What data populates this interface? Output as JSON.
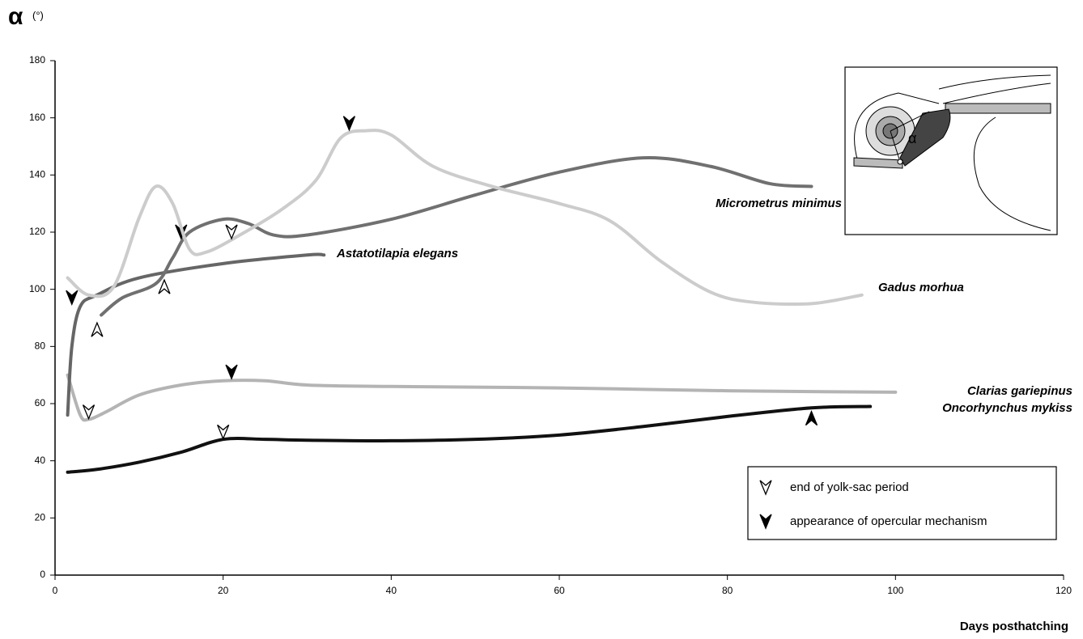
{
  "chart_data": {
    "type": "line",
    "y_label": "α",
    "y_unit": "(°)",
    "x_label": "Days posthatching",
    "xlim": [
      0,
      120
    ],
    "xticks": [
      0,
      20,
      40,
      60,
      80,
      100,
      120
    ],
    "ylim": [
      0,
      180
    ],
    "yticks": [
      0,
      20,
      40,
      60,
      80,
      100,
      120,
      140,
      160,
      180
    ],
    "grid": false,
    "series": [
      {
        "name": "Oncorhynchus mykiss",
        "color": "#111111",
        "x": [
          1.5,
          5,
          10,
          15,
          20,
          25,
          30,
          40,
          50,
          60,
          70,
          80,
          90,
          97
        ],
        "values": [
          36,
          37,
          39.5,
          43,
          47.5,
          47.5,
          47.2,
          47,
          47.5,
          49,
          52,
          55.5,
          58.5,
          59
        ],
        "yolk_sac_end": [
          [
            20,
            50
          ]
        ],
        "opercular": [
          [
            90,
            55
          ]
        ]
      },
      {
        "name": "Clarias gariepinus",
        "color": "#b4b4b4",
        "x": [
          1.5,
          3,
          4,
          6,
          10,
          15,
          20,
          25,
          30,
          40,
          60,
          80,
          100
        ],
        "values": [
          70,
          56,
          54.5,
          57,
          63,
          66.5,
          68,
          68,
          66.5,
          66,
          65.5,
          64.5,
          64
        ],
        "yolk_sac_end": [
          [
            4,
            57
          ]
        ],
        "opercular": [
          [
            21,
            71
          ]
        ]
      },
      {
        "name": "Astatotilapia elegans",
        "color": "#666666",
        "x": [
          1.5,
          2,
          3,
          5,
          10,
          20,
          30,
          32
        ],
        "values": [
          56,
          80,
          94,
          98,
          104,
          109,
          112,
          112
        ],
        "yolk_sac_end": [
          [
            13,
            101
          ]
        ],
        "opercular": [
          [
            2,
            97
          ]
        ]
      },
      {
        "name": "Micrometrus minimus",
        "color": "#707070",
        "x": [
          5.5,
          8,
          12,
          14,
          16,
          20,
          23,
          26,
          30,
          40,
          50,
          60,
          70,
          78,
          85,
          90
        ],
        "values": [
          91,
          97,
          102,
          111,
          120,
          124.5,
          123,
          119,
          119,
          124.5,
          133,
          141,
          146,
          143,
          137,
          136
        ],
        "yolk_sac_end": [
          [
            5,
            86
          ]
        ],
        "opercular": [
          [
            15,
            120
          ]
        ]
      },
      {
        "name": "Gadus morhua",
        "color": "#cccccc",
        "x": [
          1.5,
          4,
          7,
          10,
          12,
          14,
          16,
          18,
          22,
          27,
          31,
          34,
          37,
          40,
          45,
          52,
          60,
          66,
          72,
          78,
          83,
          90,
          96
        ],
        "values": [
          104,
          98,
          101,
          125,
          136,
          130,
          114,
          113,
          119,
          128,
          138,
          153,
          155.5,
          154,
          143,
          136,
          130,
          124,
          110,
          99,
          95.5,
          95,
          98
        ],
        "yolk_sac_end": [
          [
            21,
            120
          ]
        ],
        "opercular": [
          [
            35,
            158
          ]
        ]
      }
    ],
    "legend": [
      "end of yolk-sac period",
      "appearance of opercular mechanism"
    ],
    "inset_label": "α"
  }
}
